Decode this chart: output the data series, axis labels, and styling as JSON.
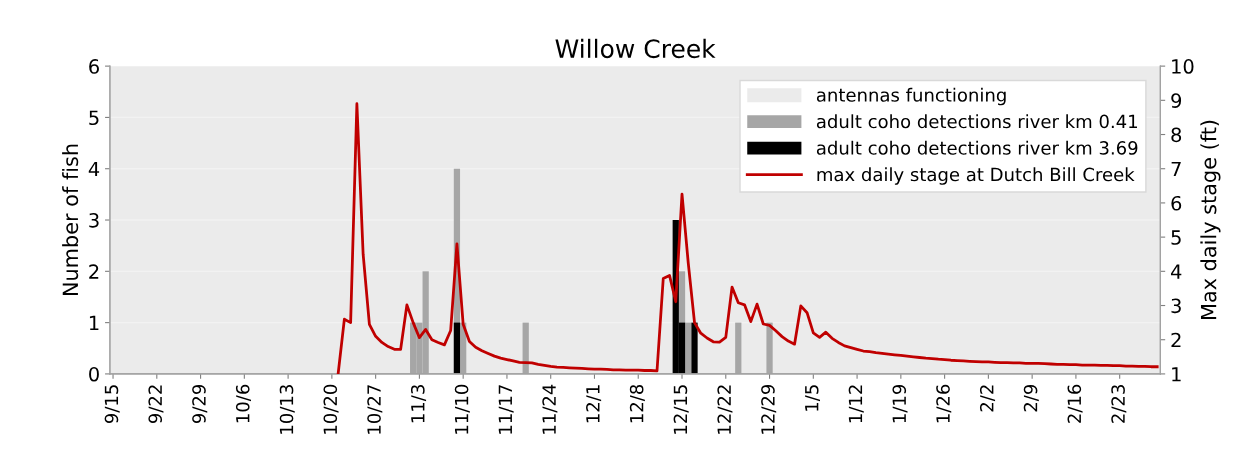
{
  "chart_data": {
    "type": "bar",
    "title": "Willow Creek",
    "ylabel": "Number of fish",
    "y2label": "Max daily stage (ft)",
    "categories": [
      "9/15",
      null,
      null,
      null,
      null,
      null,
      null,
      "9/22",
      null,
      null,
      null,
      null,
      null,
      null,
      "9/29",
      null,
      null,
      null,
      null,
      null,
      null,
      "10/6",
      null,
      null,
      null,
      null,
      null,
      null,
      "10/13",
      null,
      null,
      null,
      null,
      null,
      null,
      "10/20",
      null,
      null,
      null,
      null,
      null,
      null,
      "10/27",
      null,
      null,
      null,
      null,
      null,
      null,
      "11/3",
      null,
      null,
      null,
      null,
      null,
      null,
      "11/10",
      null,
      null,
      null,
      null,
      null,
      null,
      "11/17",
      null,
      null,
      null,
      null,
      null,
      null,
      "11/24",
      null,
      null,
      null,
      null,
      null,
      null,
      "12/1",
      null,
      null,
      null,
      null,
      null,
      null,
      "12/8",
      null,
      null,
      null,
      null,
      null,
      null,
      "12/15",
      null,
      null,
      null,
      null,
      null,
      null,
      "12/22",
      null,
      null,
      null,
      null,
      null,
      null,
      "12/29",
      null,
      null,
      null,
      null,
      null,
      null,
      "1/5",
      null,
      null,
      null,
      null,
      null,
      null,
      "1/12",
      null,
      null,
      null,
      null,
      null,
      null,
      "1/19",
      null,
      null,
      null,
      null,
      null,
      null,
      "1/26",
      null,
      null,
      null,
      null,
      null,
      null,
      "2/2",
      null,
      null,
      null,
      null,
      null,
      null,
      "2/9",
      null,
      null,
      null,
      null,
      null,
      null,
      "2/16",
      null,
      null,
      null,
      null,
      null,
      null,
      "2/23",
      null,
      null,
      null,
      null,
      null,
      null
    ],
    "bands": [
      {
        "axis": "y",
        "from": 0,
        "to": 6,
        "label": "antennas functioning",
        "color": "#ebebeb"
      }
    ],
    "series": [
      {
        "name": "adult coho detections river km 0.41",
        "color": "#a6a6a6",
        "values": [
          null,
          null,
          null,
          null,
          null,
          null,
          null,
          null,
          null,
          null,
          null,
          null,
          null,
          null,
          null,
          null,
          null,
          null,
          null,
          null,
          null,
          null,
          null,
          null,
          null,
          null,
          null,
          null,
          null,
          null,
          null,
          null,
          null,
          null,
          null,
          null,
          null,
          null,
          null,
          null,
          null,
          null,
          null,
          null,
          null,
          null,
          null,
          null,
          1,
          1,
          2,
          null,
          null,
          null,
          null,
          4,
          1,
          null,
          null,
          null,
          null,
          null,
          null,
          null,
          null,
          null,
          1,
          null,
          null,
          null,
          null,
          null,
          null,
          null,
          null,
          null,
          null,
          null,
          null,
          null,
          null,
          null,
          null,
          null,
          null,
          null,
          null,
          null,
          null,
          null,
          null,
          2,
          1,
          null,
          null,
          null,
          null,
          null,
          null,
          null,
          1,
          null,
          null,
          null,
          null,
          1,
          null,
          null,
          null,
          null,
          null,
          null,
          null,
          null,
          null,
          null,
          null,
          null,
          null,
          null,
          null,
          null,
          null,
          null,
          null,
          null,
          null,
          null,
          null,
          null,
          null,
          null,
          null,
          null,
          null,
          null,
          null,
          null,
          null,
          null,
          null,
          null,
          null,
          null,
          null,
          null,
          null,
          null,
          null,
          null,
          null,
          null,
          null,
          null,
          null,
          null,
          null,
          null,
          null,
          null,
          null,
          null,
          null,
          null,
          null,
          null,
          null,
          null
        ]
      },
      {
        "name": "adult coho detections river km 3.69",
        "color": "#000000",
        "values": [
          null,
          null,
          null,
          null,
          null,
          null,
          null,
          null,
          null,
          null,
          null,
          null,
          null,
          null,
          null,
          null,
          null,
          null,
          null,
          null,
          null,
          null,
          null,
          null,
          null,
          null,
          null,
          null,
          null,
          null,
          null,
          null,
          null,
          null,
          null,
          null,
          null,
          null,
          null,
          null,
          null,
          null,
          null,
          null,
          null,
          null,
          null,
          null,
          null,
          null,
          null,
          null,
          null,
          null,
          null,
          1,
          null,
          null,
          null,
          null,
          null,
          null,
          null,
          null,
          null,
          null,
          null,
          null,
          null,
          null,
          null,
          null,
          null,
          null,
          null,
          null,
          null,
          null,
          null,
          null,
          null,
          null,
          null,
          null,
          null,
          null,
          null,
          null,
          null,
          null,
          3,
          1,
          null,
          1,
          null,
          null,
          null,
          null,
          null,
          null,
          null,
          null,
          null,
          null,
          null,
          null,
          null,
          null,
          null,
          null,
          null,
          null,
          null,
          null,
          null,
          null,
          null,
          null,
          null,
          null,
          null,
          null,
          null,
          null,
          null,
          null,
          null,
          null,
          null,
          null,
          null,
          null,
          null,
          null,
          null,
          null,
          null,
          null,
          null,
          null,
          null,
          null,
          null,
          null,
          null,
          null,
          null,
          null,
          null,
          null,
          null,
          null,
          null,
          null,
          null,
          null,
          null,
          null,
          null,
          null,
          null,
          null,
          null,
          null,
          null,
          null,
          null,
          null
        ]
      },
      {
        "name": "max daily stage at Dutch Bill Creek",
        "type": "line",
        "axis": "y2",
        "color": "#c00000",
        "values": [
          null,
          null,
          null,
          null,
          null,
          null,
          null,
          null,
          null,
          null,
          null,
          null,
          null,
          null,
          null,
          null,
          null,
          null,
          null,
          null,
          null,
          null,
          null,
          null,
          null,
          null,
          null,
          null,
          null,
          null,
          null,
          null,
          null,
          null,
          null,
          null,
          1.0,
          2.6,
          2.5,
          8.9,
          4.5,
          2.45,
          2.1,
          1.92,
          1.8,
          1.72,
          1.72,
          3.02,
          2.5,
          2.06,
          2.3,
          2.0,
          1.92,
          1.85,
          2.27,
          4.8,
          2.45,
          1.95,
          1.78,
          1.68,
          1.6,
          1.52,
          1.46,
          1.42,
          1.38,
          1.34,
          1.33,
          1.32,
          1.28,
          1.25,
          1.22,
          1.2,
          1.19,
          1.18,
          1.17,
          1.16,
          1.15,
          1.14,
          1.14,
          1.13,
          1.12,
          1.12,
          1.11,
          1.11,
          1.11,
          1.1,
          1.1,
          1.09,
          3.79,
          3.88,
          3.11,
          6.26,
          4.24,
          2.5,
          2.19,
          2.05,
          1.94,
          1.93,
          2.07,
          3.54,
          3.08,
          3.02,
          2.53,
          3.04,
          2.46,
          2.42,
          2.26,
          2.09,
          1.96,
          1.87,
          2.99,
          2.79,
          2.2,
          2.07,
          2.22,
          2.04,
          1.92,
          1.82,
          1.77,
          1.72,
          1.67,
          1.65,
          1.62,
          1.6,
          1.58,
          1.56,
          1.54,
          1.52,
          1.5,
          1.48,
          1.46,
          1.45,
          1.43,
          1.42,
          1.4,
          1.39,
          1.38,
          1.37,
          1.36,
          1.35,
          1.35,
          1.34,
          1.33,
          1.33,
          1.32,
          1.32,
          1.31,
          1.31,
          1.31,
          1.3,
          1.29,
          1.28,
          1.28,
          1.27,
          1.27,
          1.26,
          1.26,
          1.26,
          1.25,
          1.25,
          1.24,
          1.24,
          1.23,
          1.23,
          1.22,
          1.22,
          1.21,
          1.21
        ]
      }
    ],
    "ylim": [
      0,
      6
    ],
    "yticks": [
      0,
      1,
      2,
      3,
      4,
      5,
      6
    ],
    "y2lim": [
      1,
      10
    ],
    "y2ticks": [
      1,
      2,
      3,
      4,
      5,
      6,
      7,
      8,
      9,
      10
    ],
    "grid": "y",
    "legend": "top right"
  }
}
